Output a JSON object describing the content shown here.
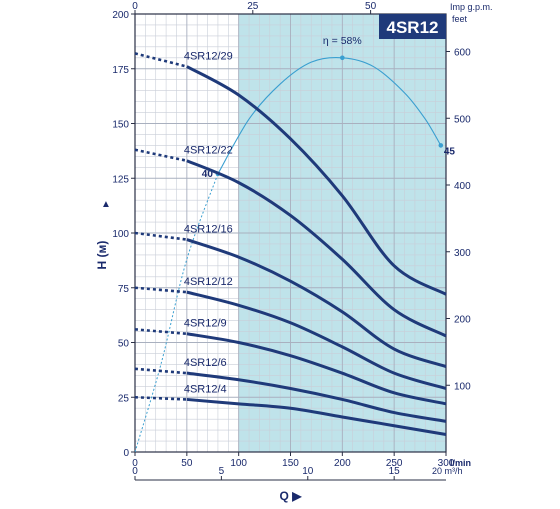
{
  "chart_data": {
    "type": "line",
    "badge": "4SR12",
    "colors": {
      "band": "#bfe3ea",
      "curve": "#1f3a7a",
      "efficiency": "#3a9fd0",
      "grid": "#c9ced8",
      "frame": "#2a2f45"
    },
    "y_axis": {
      "label": "H (м)",
      "range": [
        0,
        200
      ],
      "ticks": [
        "0",
        "25",
        "50",
        "75",
        "100",
        "125",
        "150",
        "175",
        "200"
      ],
      "arrow": "▲"
    },
    "y_right_axis": {
      "unit": "feet",
      "range": [
        0,
        656.2
      ],
      "ticks": [
        "100",
        "200",
        "300",
        "400",
        "500",
        "600"
      ]
    },
    "x_axis": {
      "unit": "l/min",
      "range": [
        0,
        300
      ],
      "ticks": [
        "0",
        "50",
        "100",
        "150",
        "200",
        "250",
        "300"
      ]
    },
    "x_top_axis": {
      "unit": "Imp g.p.m.",
      "range": [
        0,
        66
      ],
      "ticks": [
        "0",
        "25",
        "50"
      ]
    },
    "x_bottom2_axis": {
      "label": "Q ▶",
      "unit": "20 m³/h",
      "range": [
        0,
        18
      ],
      "ticks": [
        "0",
        "5",
        "10",
        "15"
      ]
    },
    "operating_band": {
      "from": 100,
      "to": 300
    },
    "series": [
      {
        "name": "4SR12/29",
        "x": [
          0,
          50,
          100,
          150,
          200,
          250,
          300
        ],
        "y": [
          182,
          176,
          163,
          143,
          117,
          85,
          72
        ]
      },
      {
        "name": "4SR12/22",
        "x": [
          0,
          50,
          100,
          150,
          200,
          250,
          300
        ],
        "y": [
          138,
          133,
          123,
          108,
          88,
          65,
          53
        ]
      },
      {
        "name": "4SR12/16",
        "x": [
          0,
          50,
          100,
          150,
          200,
          250,
          300
        ],
        "y": [
          100,
          97,
          89,
          78,
          64,
          47,
          39
        ]
      },
      {
        "name": "4SR12/12",
        "x": [
          0,
          50,
          100,
          150,
          200,
          250,
          300
        ],
        "y": [
          75,
          73,
          67,
          59,
          48,
          36,
          29
        ]
      },
      {
        "name": "4SR12/9",
        "x": [
          0,
          50,
          100,
          150,
          200,
          250,
          300
        ],
        "y": [
          56,
          54,
          50,
          44,
          36,
          27,
          22
        ]
      },
      {
        "name": "4SR12/6",
        "x": [
          0,
          50,
          100,
          150,
          200,
          250,
          300
        ],
        "y": [
          38,
          36,
          33,
          29,
          24,
          18,
          14
        ]
      },
      {
        "name": "4SR12/4",
        "x": [
          0,
          50,
          100,
          150,
          200,
          250,
          300
        ],
        "y": [
          25,
          24,
          22,
          20,
          16,
          12,
          8
        ]
      }
    ],
    "efficiency_curve": {
      "label": "η = 58%",
      "x": [
        0,
        25,
        50,
        80,
        110,
        140,
        170,
        200,
        230,
        260,
        280,
        295
      ],
      "y": [
        0,
        40,
        88,
        127,
        152,
        168,
        178,
        180,
        176,
        164,
        152,
        140
      ],
      "points": [
        {
          "x": 80,
          "y": 127,
          "label": "40"
        },
        {
          "x": 200,
          "y": 180,
          "label": ""
        },
        {
          "x": 295,
          "y": 140,
          "label": "45"
        }
      ]
    }
  }
}
